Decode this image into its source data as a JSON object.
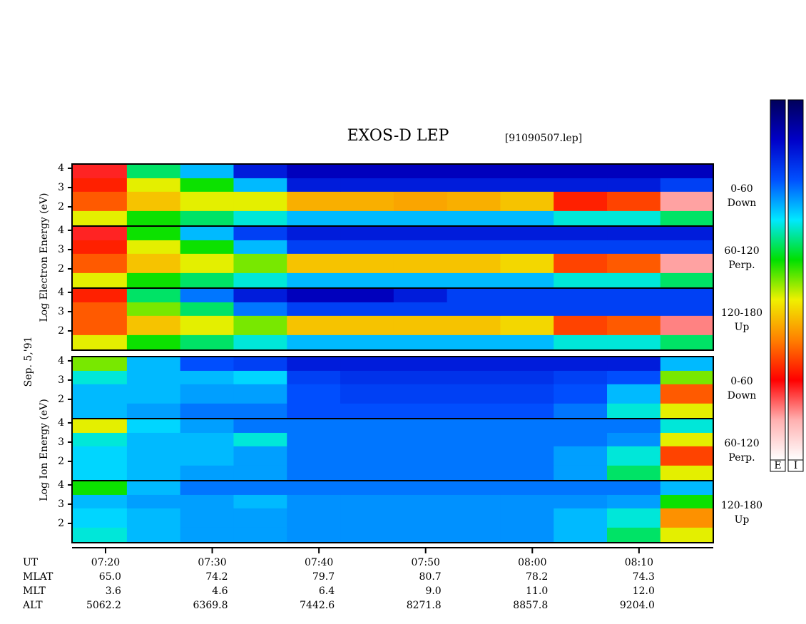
{
  "chart_data": {
    "type": "spectrogram",
    "title": "EXOS-D LEP",
    "subtitle": "[91090507.lep]",
    "date_label": "Sep. 5,'91",
    "axis_labels": [
      "Log Electron Energy (eV)",
      "Log Ion Energy (eV)"
    ],
    "xlim": [
      16.86,
      76.96
    ],
    "xticks": [
      {
        "value": 20,
        "label": "07:20"
      },
      {
        "value": 30,
        "label": "07:30"
      },
      {
        "value": 40,
        "label": "07:40"
      },
      {
        "value": 50,
        "label": "07:50"
      },
      {
        "value": 60,
        "label": "08:00"
      },
      {
        "value": 70,
        "label": "08:10"
      }
    ],
    "ylim": [
      1,
      4.22
    ],
    "yticks": [
      2,
      3,
      4
    ],
    "xbins": [
      16.86,
      22,
      27,
      32,
      37,
      42,
      47,
      52,
      57,
      62,
      67,
      72,
      76.96
    ],
    "ybins": [
      1,
      1.8,
      2.8,
      3.5,
      4.22
    ],
    "zlim": [
      0,
      1
    ],
    "colormap": [
      "#00005a",
      "#0000c8",
      "#0050ff",
      "#00e8ff",
      "#00e000",
      "#f0f000",
      "#ff8000",
      "#ff0000",
      "#ffb0b0",
      "#ffffff"
    ],
    "colorbar_labels": [
      "E",
      "I"
    ],
    "panels": [
      {
        "label": [
          "0-60",
          "Down"
        ],
        "z": [
          [
            0.55,
            0.45,
            0.4,
            0.35,
            0.3,
            0.3,
            0.3,
            0.3,
            0.3,
            0.35,
            0.35,
            0.4
          ],
          [
            0.7,
            0.6,
            0.55,
            0.55,
            0.62,
            0.62,
            0.63,
            0.62,
            0.6,
            0.75,
            0.72,
            0.88
          ],
          [
            0.75,
            0.55,
            0.45,
            0.3,
            0.15,
            0.15,
            0.15,
            0.15,
            0.15,
            0.15,
            0.15,
            0.2
          ],
          [
            0.8,
            0.4,
            0.3,
            0.15,
            0.1,
            0.1,
            0.1,
            0.1,
            0.1,
            0.1,
            0.1,
            0.1
          ]
        ]
      },
      {
        "label": [
          "60-120",
          "Perp."
        ],
        "z": [
          [
            0.55,
            0.45,
            0.4,
            0.35,
            0.3,
            0.3,
            0.3,
            0.3,
            0.3,
            0.35,
            0.35,
            0.4
          ],
          [
            0.7,
            0.6,
            0.55,
            0.5,
            0.6,
            0.6,
            0.6,
            0.6,
            0.58,
            0.72,
            0.7,
            0.88
          ],
          [
            0.75,
            0.55,
            0.45,
            0.3,
            0.2,
            0.2,
            0.2,
            0.2,
            0.2,
            0.2,
            0.2,
            0.2
          ],
          [
            0.8,
            0.45,
            0.3,
            0.2,
            0.15,
            0.15,
            0.15,
            0.15,
            0.15,
            0.15,
            0.15,
            0.15
          ]
        ]
      },
      {
        "label": [
          "120-180",
          "Up"
        ],
        "z": [
          [
            0.55,
            0.45,
            0.4,
            0.35,
            0.3,
            0.3,
            0.3,
            0.3,
            0.3,
            0.35,
            0.35,
            0.4
          ],
          [
            0.7,
            0.6,
            0.55,
            0.5,
            0.6,
            0.6,
            0.6,
            0.6,
            0.58,
            0.72,
            0.7,
            0.86
          ],
          [
            0.7,
            0.5,
            0.4,
            0.25,
            0.2,
            0.2,
            0.2,
            0.2,
            0.2,
            0.2,
            0.2,
            0.2
          ],
          [
            0.75,
            0.4,
            0.25,
            0.15,
            0.1,
            0.1,
            0.15,
            0.2,
            0.2,
            0.2,
            0.2,
            0.2
          ]
        ]
      },
      {
        "label": [
          "0-60",
          "Down"
        ],
        "z": [
          [
            0.3,
            0.28,
            0.25,
            0.25,
            0.22,
            0.22,
            0.22,
            0.22,
            0.22,
            0.25,
            0.35,
            0.55
          ],
          [
            0.3,
            0.3,
            0.28,
            0.28,
            0.22,
            0.2,
            0.2,
            0.2,
            0.2,
            0.22,
            0.3,
            0.7
          ],
          [
            0.35,
            0.3,
            0.3,
            0.32,
            0.2,
            0.18,
            0.18,
            0.18,
            0.18,
            0.2,
            0.22,
            0.5
          ],
          [
            0.5,
            0.3,
            0.22,
            0.2,
            0.15,
            0.15,
            0.15,
            0.15,
            0.15,
            0.15,
            0.15,
            0.3
          ]
        ]
      },
      {
        "label": [
          "60-120",
          "Perp."
        ],
        "z": [
          [
            0.32,
            0.3,
            0.28,
            0.28,
            0.25,
            0.25,
            0.25,
            0.25,
            0.25,
            0.28,
            0.4,
            0.55
          ],
          [
            0.32,
            0.3,
            0.3,
            0.28,
            0.25,
            0.25,
            0.25,
            0.25,
            0.25,
            0.28,
            0.35,
            0.72
          ],
          [
            0.35,
            0.3,
            0.3,
            0.35,
            0.25,
            0.25,
            0.25,
            0.25,
            0.25,
            0.25,
            0.27,
            0.55
          ],
          [
            0.55,
            0.32,
            0.28,
            0.25,
            0.25,
            0.25,
            0.25,
            0.25,
            0.25,
            0.25,
            0.25,
            0.35
          ]
        ]
      },
      {
        "label": [
          "120-180",
          "Up"
        ],
        "z": [
          [
            0.35,
            0.3,
            0.28,
            0.28,
            0.27,
            0.27,
            0.27,
            0.27,
            0.27,
            0.3,
            0.4,
            0.55
          ],
          [
            0.32,
            0.3,
            0.28,
            0.28,
            0.27,
            0.27,
            0.27,
            0.27,
            0.27,
            0.3,
            0.35,
            0.65
          ],
          [
            0.3,
            0.28,
            0.28,
            0.3,
            0.27,
            0.27,
            0.27,
            0.27,
            0.27,
            0.27,
            0.28,
            0.45
          ],
          [
            0.45,
            0.3,
            0.25,
            0.25,
            0.25,
            0.25,
            0.25,
            0.25,
            0.25,
            0.25,
            0.25,
            0.3
          ]
        ]
      }
    ],
    "ephemeris": {
      "x_label": "UT",
      "rows": [
        {
          "label": "MLAT",
          "values": [
            "65.0",
            "74.2",
            "79.7",
            "80.7",
            "78.2",
            "74.3"
          ]
        },
        {
          "label": "MLT",
          "values": [
            "3.6",
            "4.6",
            "6.4",
            "9.0",
            "11.0",
            "12.0"
          ]
        },
        {
          "label": "ALT",
          "values": [
            "5062.2",
            "6369.8",
            "7442.6",
            "8271.8",
            "8857.8",
            "9204.0"
          ]
        }
      ]
    }
  }
}
